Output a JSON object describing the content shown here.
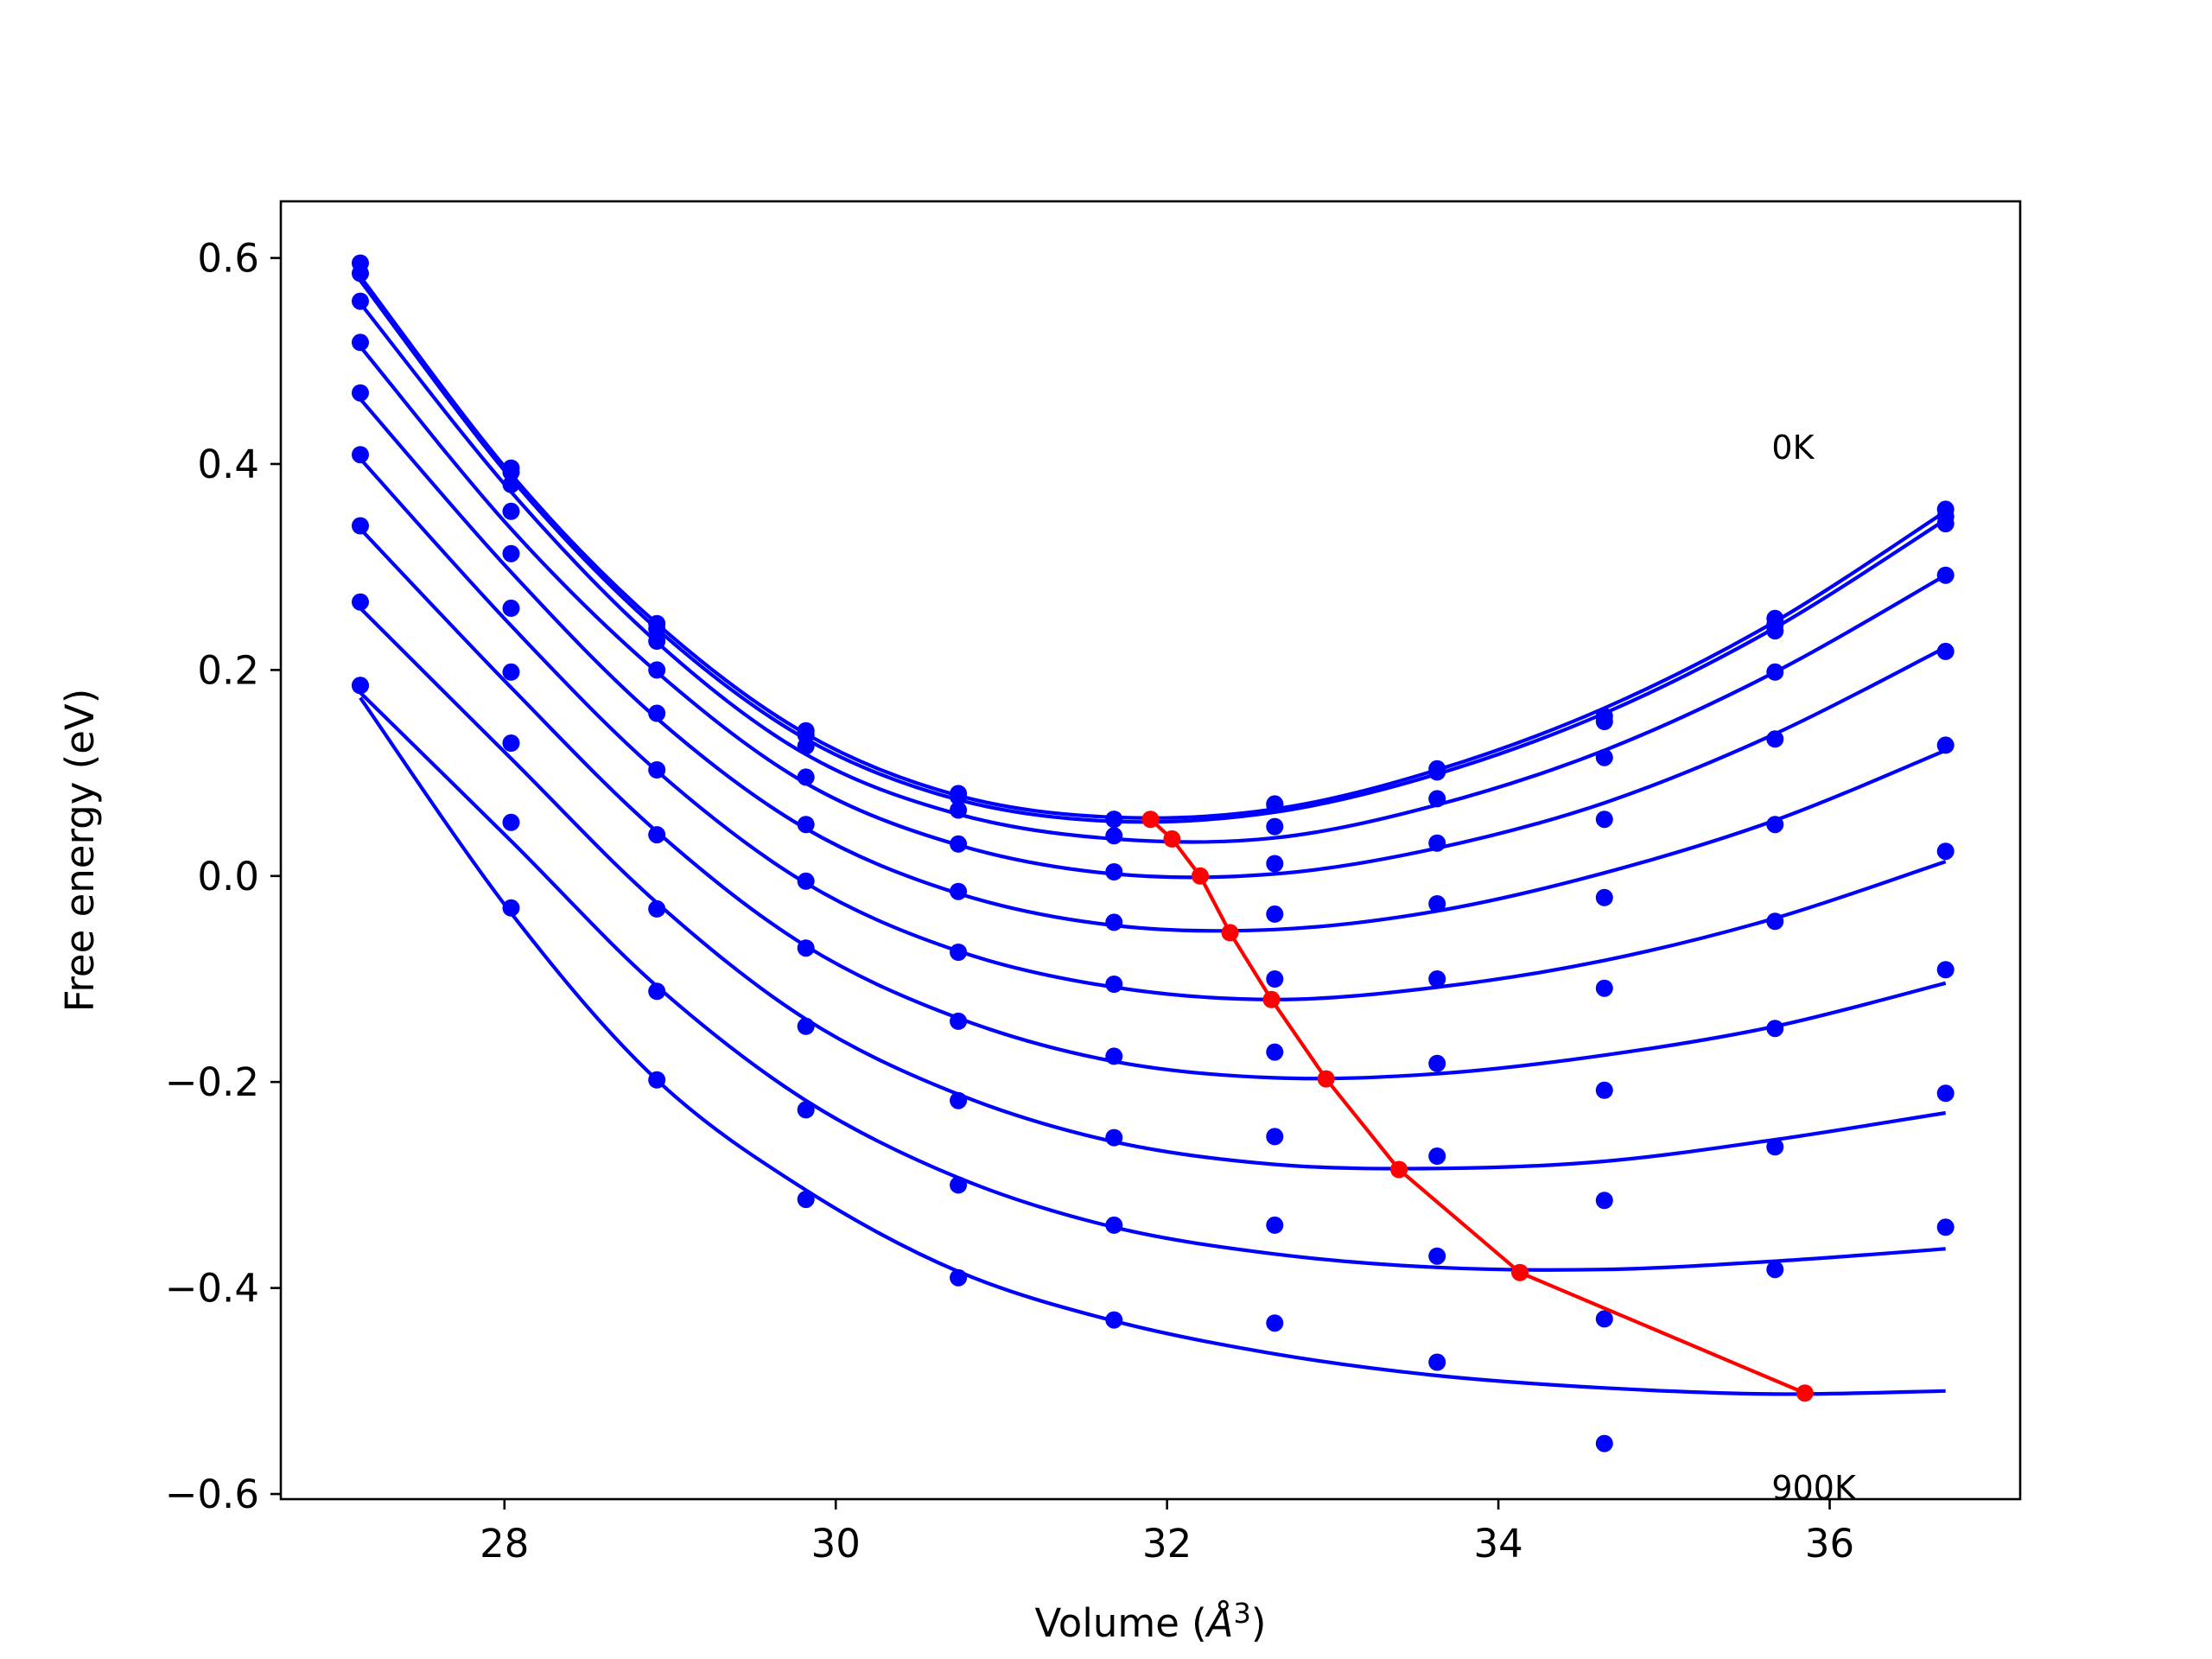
{
  "chart_data": {
    "type": "line",
    "title": "",
    "xlabel": "Volume (",
    "xlabel_unit": "Å",
    "xlabel_exp": "3",
    "xlabel_close": ")",
    "ylabel": "Free energy (eV)",
    "xlim": [
      26.65,
      37.15
    ],
    "ylim": [
      -0.605,
      0.655
    ],
    "x_ticks": [
      28,
      30,
      32,
      34,
      36
    ],
    "x_tick_labels": [
      "28",
      "30",
      "32",
      "34",
      "36"
    ],
    "y_ticks": [
      -0.6,
      -0.4,
      -0.2,
      0.0,
      0.2,
      0.4,
      0.6
    ],
    "y_tick_labels": [
      "−0.6",
      "−0.4",
      "−0.2",
      "0.0",
      "0.2",
      "0.4",
      "0.6"
    ],
    "grid": false,
    "annotations": [
      {
        "text": "0K",
        "x": 35.65,
        "y": 0.405
      },
      {
        "text": "900K",
        "x": 35.65,
        "y": -0.605
      }
    ],
    "point_color": "#0000ff",
    "fit_color": "#0000ff",
    "min_color": "#ff0000",
    "volumes": [
      27.13,
      28.04,
      28.92,
      29.82,
      30.74,
      31.68,
      32.65,
      33.63,
      34.64,
      35.67,
      36.7
    ],
    "series": [
      {
        "name": "",
        "values": [
          0.595,
          0.396,
          0.245,
          0.141,
          0.08,
          0.055,
          0.07,
          0.104,
          0.155,
          0.25,
          0.356
        ]
      },
      {
        "name": "",
        "values": [
          0.585,
          0.392,
          0.24,
          0.137,
          0.077,
          0.055,
          0.069,
          0.101,
          0.15,
          0.244,
          0.349
        ]
      },
      {
        "name": "",
        "values": [
          0.558,
          0.38,
          0.228,
          0.126,
          0.064,
          0.039,
          0.048,
          0.075,
          0.115,
          0.238,
          0.342
        ]
      },
      {
        "name": "",
        "values": [
          0.518,
          0.354,
          0.2,
          0.096,
          0.031,
          0.004,
          0.012,
          0.032,
          0.055,
          0.198,
          0.292
        ]
      },
      {
        "name": "",
        "values": [
          0.469,
          0.313,
          0.158,
          0.05,
          -0.015,
          -0.045,
          -0.037,
          -0.027,
          -0.021,
          0.133,
          0.218
        ]
      },
      {
        "name": "",
        "values": [
          0.409,
          0.26,
          0.103,
          -0.005,
          -0.074,
          -0.105,
          -0.1,
          -0.1,
          -0.109,
          0.05,
          0.127
        ]
      },
      {
        "name": "",
        "values": [
          0.34,
          0.198,
          0.04,
          -0.07,
          -0.141,
          -0.175,
          -0.171,
          -0.182,
          -0.208,
          -0.044,
          0.024
        ]
      },
      {
        "name": "",
        "values": [
          0.266,
          0.129,
          -0.032,
          -0.146,
          -0.218,
          -0.254,
          -0.253,
          -0.272,
          -0.315,
          -0.148,
          -0.091
        ]
      },
      {
        "name": "",
        "values": [
          0.185,
          0.052,
          -0.112,
          -0.227,
          -0.3,
          -0.339,
          -0.339,
          -0.369,
          -0.43,
          -0.263,
          -0.211
        ]
      },
      {
        "name": "",
        "values": [
          0.185,
          -0.031,
          -0.198,
          -0.314,
          -0.39,
          -0.431,
          -0.434,
          -0.472,
          -0.551,
          -0.382,
          -0.341
        ]
      }
    ],
    "fits": [
      {
        "points": [
          [
            27.13,
            0.582
          ],
          [
            28.04,
            0.39
          ],
          [
            28.92,
            0.245
          ],
          [
            29.82,
            0.138
          ],
          [
            30.74,
            0.078
          ],
          [
            31.68,
            0.057
          ],
          [
            32.65,
            0.065
          ],
          [
            33.63,
            0.103
          ],
          [
            34.64,
            0.163
          ],
          [
            35.67,
            0.247
          ],
          [
            36.7,
            0.354
          ]
        ]
      },
      {
        "points": [
          [
            27.13,
            0.578
          ],
          [
            28.04,
            0.386
          ],
          [
            28.92,
            0.24
          ],
          [
            29.82,
            0.133
          ],
          [
            30.74,
            0.074
          ],
          [
            31.68,
            0.053
          ],
          [
            32.65,
            0.062
          ],
          [
            33.63,
            0.099
          ],
          [
            34.64,
            0.158
          ],
          [
            35.67,
            0.241
          ],
          [
            36.7,
            0.346
          ]
        ]
      },
      {
        "points": [
          [
            27.13,
            0.556
          ],
          [
            28.04,
            0.373
          ],
          [
            28.92,
            0.227
          ],
          [
            29.82,
            0.118
          ],
          [
            30.74,
            0.06
          ],
          [
            31.68,
            0.036
          ],
          [
            32.65,
            0.037
          ],
          [
            33.63,
            0.069
          ],
          [
            34.64,
            0.122
          ],
          [
            35.67,
            0.198
          ],
          [
            36.7,
            0.292
          ]
        ]
      },
      {
        "points": [
          [
            27.13,
            0.514
          ],
          [
            28.04,
            0.337
          ],
          [
            28.92,
            0.198
          ],
          [
            29.82,
            0.09
          ],
          [
            30.74,
            0.03
          ],
          [
            31.68,
            0.002
          ],
          [
            32.65,
            0.002
          ],
          [
            33.63,
            0.027
          ],
          [
            34.64,
            0.071
          ],
          [
            35.67,
            0.138
          ],
          [
            36.7,
            0.222
          ]
        ]
      },
      {
        "points": [
          [
            27.13,
            0.463
          ],
          [
            28.04,
            0.295
          ],
          [
            28.92,
            0.153
          ],
          [
            29.82,
            0.046
          ],
          [
            30.74,
            -0.017
          ],
          [
            31.68,
            -0.048
          ],
          [
            32.65,
            -0.052
          ],
          [
            33.63,
            -0.034
          ],
          [
            34.64,
            0.003
          ],
          [
            35.67,
            0.054
          ],
          [
            36.7,
            0.122
          ]
        ]
      },
      {
        "points": [
          [
            27.13,
            0.405
          ],
          [
            28.04,
            0.243
          ],
          [
            28.92,
            0.102
          ],
          [
            29.82,
            -0.007
          ],
          [
            30.74,
            -0.073
          ],
          [
            31.68,
            -0.108
          ],
          [
            32.65,
            -0.12
          ],
          [
            33.63,
            -0.108
          ],
          [
            34.64,
            -0.082
          ],
          [
            35.67,
            -0.041
          ],
          [
            36.7,
            0.014
          ]
        ]
      },
      {
        "points": [
          [
            27.13,
            0.337
          ],
          [
            28.04,
            0.183
          ],
          [
            28.92,
            0.043
          ],
          [
            29.82,
            -0.068
          ],
          [
            30.74,
            -0.138
          ],
          [
            31.68,
            -0.18
          ],
          [
            32.65,
            -0.196
          ],
          [
            33.63,
            -0.192
          ],
          [
            34.64,
            -0.174
          ],
          [
            35.67,
            -0.146
          ],
          [
            36.7,
            -0.104
          ]
        ]
      },
      {
        "points": [
          [
            27.13,
            0.26
          ],
          [
            28.04,
            0.114
          ],
          [
            28.92,
            -0.026
          ],
          [
            29.82,
            -0.139
          ],
          [
            30.74,
            -0.212
          ],
          [
            31.68,
            -0.258
          ],
          [
            32.65,
            -0.28
          ],
          [
            33.63,
            -0.284
          ],
          [
            34.64,
            -0.277
          ],
          [
            35.67,
            -0.256
          ],
          [
            36.7,
            -0.23
          ]
        ]
      },
      {
        "points": [
          [
            27.13,
            0.178
          ],
          [
            28.04,
            0.034
          ],
          [
            28.92,
            -0.107
          ],
          [
            29.82,
            -0.218
          ],
          [
            30.74,
            -0.293
          ],
          [
            31.68,
            -0.341
          ],
          [
            32.65,
            -0.367
          ],
          [
            33.63,
            -0.38
          ],
          [
            34.64,
            -0.382
          ],
          [
            35.67,
            -0.374
          ],
          [
            36.7,
            -0.362
          ]
        ]
      },
      {
        "points": [
          [
            27.13,
            0.173
          ],
          [
            28.04,
            -0.036
          ],
          [
            28.92,
            -0.198
          ],
          [
            29.82,
            -0.305
          ],
          [
            30.74,
            -0.384
          ],
          [
            31.68,
            -0.432
          ],
          [
            32.65,
            -0.464
          ],
          [
            33.63,
            -0.485
          ],
          [
            34.64,
            -0.497
          ],
          [
            35.67,
            -0.503
          ],
          [
            36.7,
            -0.5
          ]
        ]
      }
    ],
    "minima": [
      [
        31.9,
        0.055
      ],
      [
        32.03,
        0.036
      ],
      [
        32.2,
        0.0
      ],
      [
        32.38,
        -0.055
      ],
      [
        32.63,
        -0.12
      ],
      [
        32.96,
        -0.197
      ],
      [
        33.4,
        -0.285
      ],
      [
        34.13,
        -0.385
      ],
      [
        35.85,
        -0.502
      ]
    ]
  }
}
